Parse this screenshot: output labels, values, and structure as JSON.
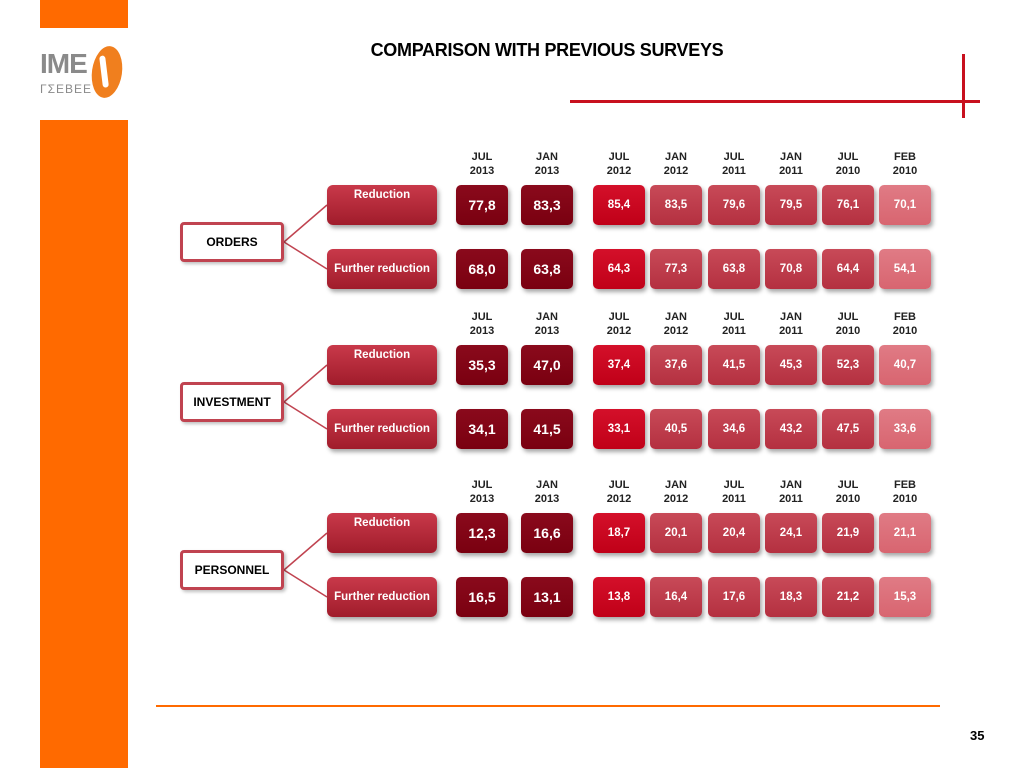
{
  "title": "COMPARISON WITH PREVIOUS SURVEYS",
  "logo": {
    "text": "IME",
    "sub": "ΓΣΕΒΕΕ"
  },
  "page_number": "35",
  "colors": {
    "accent": "#ff6a00",
    "red_line": "#c8101e",
    "darkest": "#7a0010",
    "dark": "#c00018",
    "mid": "#b43040",
    "light": "#d86570"
  },
  "columns": [
    {
      "m": "JUL",
      "y": "2013"
    },
    {
      "m": "JAN",
      "y": "2013"
    },
    {
      "m": "JUL",
      "y": "2012"
    },
    {
      "m": "JAN",
      "y": "2012"
    },
    {
      "m": "JUL",
      "y": "2011"
    },
    {
      "m": "JAN",
      "y": "2011"
    },
    {
      "m": "JUL",
      "y": "2010"
    },
    {
      "m": "FEB",
      "y": "2010"
    }
  ],
  "sections": [
    {
      "label": "ORDERS",
      "rows": [
        {
          "label": "Reduction",
          "values": [
            "77,8",
            "83,3",
            "85,4",
            "83,5",
            "79,6",
            "79,5",
            "76,1",
            "70,1"
          ]
        },
        {
          "label": "Further reduction",
          "values": [
            "68,0",
            "63,8",
            "64,3",
            "77,3",
            "63,8",
            "70,8",
            "64,4",
            "54,1"
          ]
        }
      ]
    },
    {
      "label": "INVESTMENT",
      "rows": [
        {
          "label": "Reduction",
          "values": [
            "35,3",
            "47,0",
            "37,4",
            "37,6",
            "41,5",
            "45,3",
            "52,3",
            "40,7"
          ]
        },
        {
          "label": "Further reduction",
          "values": [
            "34,1",
            "41,5",
            "33,1",
            "40,5",
            "34,6",
            "43,2",
            "47,5",
            "33,6"
          ]
        }
      ]
    },
    {
      "label": "PERSONNEL",
      "rows": [
        {
          "label": "Reduction",
          "values": [
            "12,3",
            "16,6",
            "18,7",
            "20,1",
            "20,4",
            "24,1",
            "21,9",
            "21,1"
          ]
        },
        {
          "label": "Further reduction",
          "values": [
            "16,5",
            "13,1",
            "13,8",
            "16,4",
            "17,6",
            "18,3",
            "21,2",
            "15,3"
          ]
        }
      ]
    }
  ]
}
